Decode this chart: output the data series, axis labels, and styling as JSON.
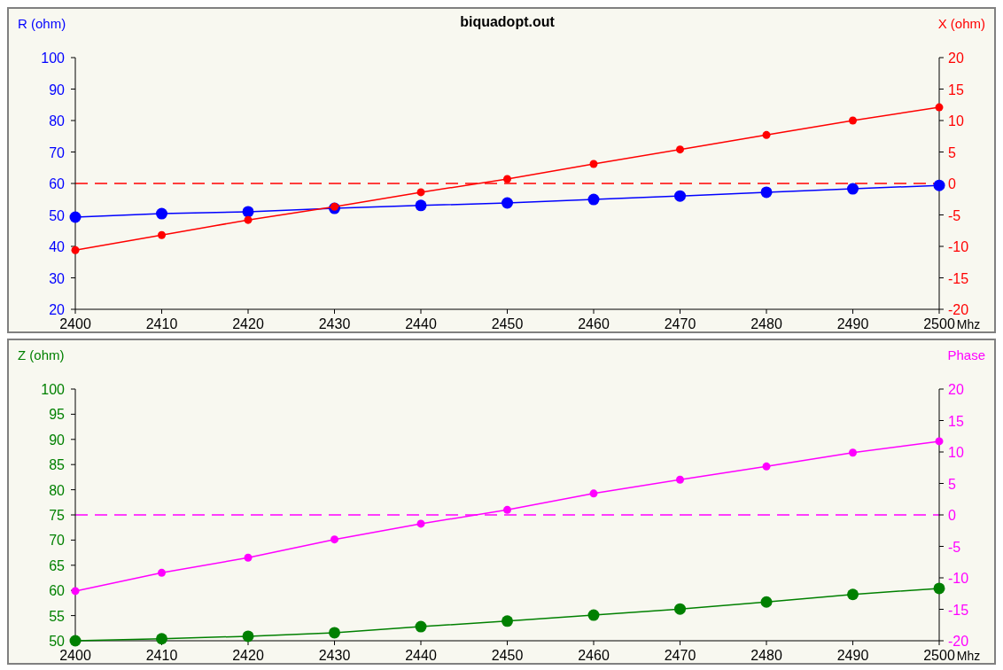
{
  "chart_data": [
    {
      "type": "line",
      "title": "biquadopt.out",
      "xlabel": "Mhz",
      "ylabel": "R (ohm)",
      "y2label": "X (ohm)",
      "x": [
        2400,
        2410,
        2420,
        2430,
        2440,
        2450,
        2460,
        2470,
        2480,
        2490,
        2500
      ],
      "xlim": [
        2400,
        2500
      ],
      "xticks": [
        2400,
        2410,
        2420,
        2430,
        2440,
        2450,
        2460,
        2470,
        2480,
        2490,
        2500
      ],
      "ylim": [
        20,
        100
      ],
      "yticks": [
        20,
        30,
        40,
        50,
        60,
        70,
        80,
        90,
        100
      ],
      "y2lim": [
        -20,
        20
      ],
      "y2ticks": [
        -20,
        -15,
        -10,
        -5,
        0,
        5,
        10,
        15,
        20
      ],
      "marker": "circle",
      "grid": false,
      "series": [
        {
          "color": "#0000ff",
          "values": [
            49.3,
            50.4,
            51,
            52.1,
            53,
            53.8,
            54.9,
            56,
            57.2,
            58.3,
            59.4
          ]
        },
        {
          "color": "#ff0000",
          "axis": "y2",
          "values": [
            -10.6,
            -8.2,
            -5.8,
            -3.7,
            -1.4,
            0.7,
            3.1,
            5.4,
            7.7,
            10,
            12.1
          ]
        }
      ],
      "ref_lines": [
        {
          "axis": "y2",
          "value": 0,
          "color": "#ff0000",
          "line_style": "dashed"
        }
      ]
    },
    {
      "type": "line",
      "xlabel": "Mhz",
      "ylabel": "Z (ohm)",
      "y2label": "Phase",
      "x": [
        2400,
        2410,
        2420,
        2430,
        2440,
        2450,
        2460,
        2470,
        2480,
        2490,
        2500
      ],
      "xlim": [
        2400,
        2500
      ],
      "xticks": [
        2400,
        2410,
        2420,
        2430,
        2440,
        2450,
        2460,
        2470,
        2480,
        2490,
        2500
      ],
      "ylim": [
        50,
        100
      ],
      "yticks": [
        50,
        55,
        60,
        65,
        70,
        75,
        80,
        85,
        90,
        95,
        100
      ],
      "y2lim": [
        -20,
        20
      ],
      "y2ticks": [
        -20,
        -15,
        -10,
        -5,
        0,
        5,
        10,
        15,
        20
      ],
      "marker": "circle",
      "grid": false,
      "series": [
        {
          "color": "#008000",
          "values": [
            50,
            50.4,
            50.9,
            51.6,
            52.8,
            53.9,
            55.1,
            56.3,
            57.7,
            59.2,
            60.4
          ]
        },
        {
          "color": "#ff00ff",
          "axis": "y2",
          "values": [
            -12.1,
            -9.2,
            -6.8,
            -3.9,
            -1.4,
            0.8,
            3.4,
            5.6,
            7.7,
            9.9,
            11.7
          ]
        }
      ],
      "ref_lines": [
        {
          "axis": "y2",
          "value": 0,
          "color": "#ff00ff",
          "line_style": "dashed"
        }
      ]
    }
  ]
}
